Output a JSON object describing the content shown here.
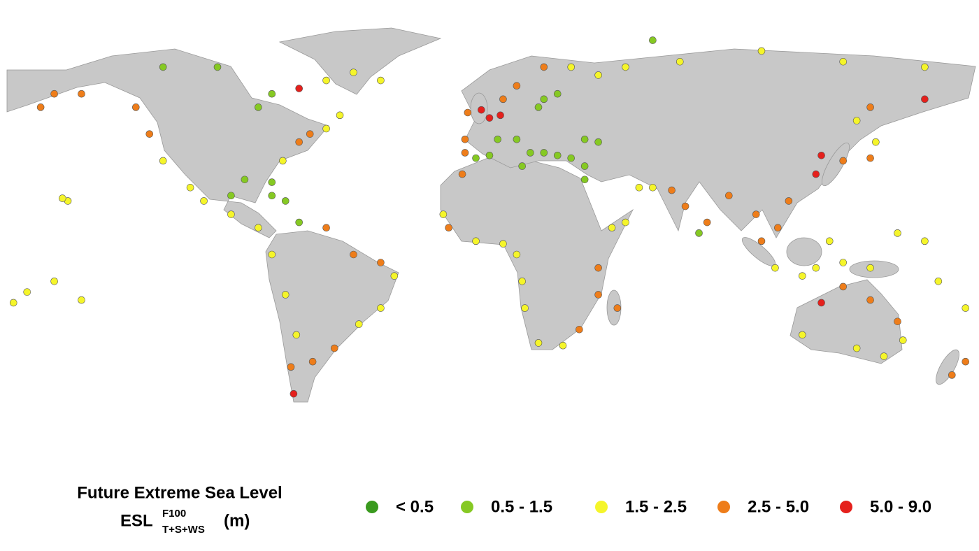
{
  "map": {
    "title": "Future Extreme Sea Level",
    "unit_main": "ESL",
    "unit_sup": "F100",
    "unit_sub": "T+S+WS",
    "unit_suffix": "(m)",
    "classes": [
      {
        "label": "< 0.5",
        "color": "#3a9a1e"
      },
      {
        "label": "0.5 - 1.5",
        "color": "#86c923"
      },
      {
        "label": "1.5 - 2.5",
        "color": "#f5f52a"
      },
      {
        "label": "2.5 - 5.0",
        "color": "#ee7d1a"
      },
      {
        "label": "5.0 - 9.0",
        "color": "#e5201c"
      }
    ],
    "points": [
      [
        -3,
        54,
        4
      ],
      [
        0,
        51,
        4
      ],
      [
        4,
        52,
        4
      ],
      [
        -8,
        53,
        3
      ],
      [
        -9,
        43,
        3
      ],
      [
        -9,
        38,
        3
      ],
      [
        5,
        58,
        3
      ],
      [
        10,
        63,
        3
      ],
      [
        20,
        70,
        3
      ],
      [
        30,
        70,
        2
      ],
      [
        40,
        67,
        2
      ],
      [
        3,
        43,
        1
      ],
      [
        10,
        43,
        1
      ],
      [
        15,
        38,
        1
      ],
      [
        20,
        38,
        1
      ],
      [
        25,
        37,
        1
      ],
      [
        30,
        36,
        1
      ],
      [
        35,
        33,
        1
      ],
      [
        0,
        37,
        1
      ],
      [
        -5,
        36,
        1
      ],
      [
        12,
        33,
        1
      ],
      [
        20,
        58,
        1
      ],
      [
        25,
        60,
        1
      ],
      [
        18,
        55,
        1
      ],
      [
        35,
        43,
        1
      ],
      [
        40,
        42,
        1
      ],
      [
        -10,
        30,
        3
      ],
      [
        -17,
        15,
        2
      ],
      [
        -15,
        10,
        3
      ],
      [
        -5,
        5,
        2
      ],
      [
        5,
        4,
        2
      ],
      [
        10,
        0,
        2
      ],
      [
        12,
        -10,
        2
      ],
      [
        13,
        -20,
        2
      ],
      [
        18,
        -33,
        2
      ],
      [
        27,
        -34,
        2
      ],
      [
        33,
        -28,
        3
      ],
      [
        40,
        -15,
        3
      ],
      [
        40,
        -5,
        3
      ],
      [
        45,
        10,
        2
      ],
      [
        50,
        12,
        2
      ],
      [
        35,
        28,
        1
      ],
      [
        47,
        -20,
        3
      ],
      [
        55,
        25,
        2
      ],
      [
        60,
        25,
        2
      ],
      [
        67,
        24,
        3
      ],
      [
        72,
        18,
        3
      ],
      [
        80,
        12,
        3
      ],
      [
        77,
        8,
        1
      ],
      [
        88,
        22,
        3
      ],
      [
        98,
        15,
        3
      ],
      [
        100,
        5,
        3
      ],
      [
        106,
        10,
        3
      ],
      [
        110,
        20,
        3
      ],
      [
        120,
        30,
        4
      ],
      [
        122,
        37,
        4
      ],
      [
        130,
        35,
        3
      ],
      [
        140,
        36,
        3
      ],
      [
        142,
        42,
        2
      ],
      [
        135,
        50,
        2
      ],
      [
        140,
        55,
        3
      ],
      [
        160,
        58,
        4
      ],
      [
        120,
        -5,
        2
      ],
      [
        115,
        -8,
        2
      ],
      [
        105,
        -5,
        2
      ],
      [
        125,
        5,
        2
      ],
      [
        130,
        -3,
        2
      ],
      [
        140,
        -5,
        2
      ],
      [
        115,
        -30,
        2
      ],
      [
        122,
        -18,
        4
      ],
      [
        130,
        -12,
        3
      ],
      [
        140,
        -17,
        3
      ],
      [
        150,
        -25,
        3
      ],
      [
        152,
        -32,
        2
      ],
      [
        145,
        -38,
        2
      ],
      [
        135,
        -35,
        2
      ],
      [
        175,
        -40,
        3
      ],
      [
        170,
        -45,
        3
      ],
      [
        50,
        70,
        2
      ],
      [
        70,
        72,
        2
      ],
      [
        100,
        76,
        2
      ],
      [
        130,
        72,
        2
      ],
      [
        160,
        70,
        2
      ],
      [
        60,
        80,
        1
      ],
      [
        -160,
        60,
        3
      ],
      [
        -150,
        60,
        3
      ],
      [
        -165,
        55,
        3
      ],
      [
        -130,
        55,
        3
      ],
      [
        -125,
        45,
        3
      ],
      [
        -120,
        35,
        2
      ],
      [
        -110,
        25,
        2
      ],
      [
        -105,
        20,
        2
      ],
      [
        -95,
        15,
        2
      ],
      [
        -85,
        10,
        2
      ],
      [
        -80,
        0,
        2
      ],
      [
        -75,
        -15,
        2
      ],
      [
        -71,
        -30,
        2
      ],
      [
        -73,
        -42,
        3
      ],
      [
        -72,
        -52,
        4
      ],
      [
        -65,
        -40,
        3
      ],
      [
        -57,
        -35,
        3
      ],
      [
        -48,
        -26,
        2
      ],
      [
        -40,
        -20,
        2
      ],
      [
        -35,
        -8,
        2
      ],
      [
        -40,
        -3,
        3
      ],
      [
        -50,
        0,
        3
      ],
      [
        -60,
        10,
        3
      ],
      [
        -70,
        12,
        1
      ],
      [
        -80,
        22,
        1
      ],
      [
        -75,
        20,
        1
      ],
      [
        -90,
        28,
        1
      ],
      [
        -95,
        22,
        1
      ],
      [
        -80,
        27,
        1
      ],
      [
        -76,
        35,
        2
      ],
      [
        -70,
        42,
        3
      ],
      [
        -66,
        45,
        3
      ],
      [
        -60,
        47,
        2
      ],
      [
        -55,
        52,
        2
      ],
      [
        -80,
        60,
        1
      ],
      [
        -85,
        55,
        1
      ],
      [
        -70,
        62,
        4
      ],
      [
        -60,
        65,
        2
      ],
      [
        -50,
        68,
        2
      ],
      [
        -40,
        65,
        2
      ],
      [
        -100,
        70,
        1
      ],
      [
        -120,
        70,
        1
      ],
      [
        -155,
        20,
        2
      ],
      [
        -157,
        21,
        2
      ],
      [
        -150,
        -17,
        2
      ],
      [
        -175,
        -18,
        2
      ],
      [
        -170,
        -14,
        2
      ],
      [
        175,
        -20,
        2
      ],
      [
        165,
        -10,
        2
      ],
      [
        150,
        8,
        2
      ],
      [
        160,
        5,
        2
      ],
      [
        -160,
        -10,
        2
      ]
    ]
  }
}
